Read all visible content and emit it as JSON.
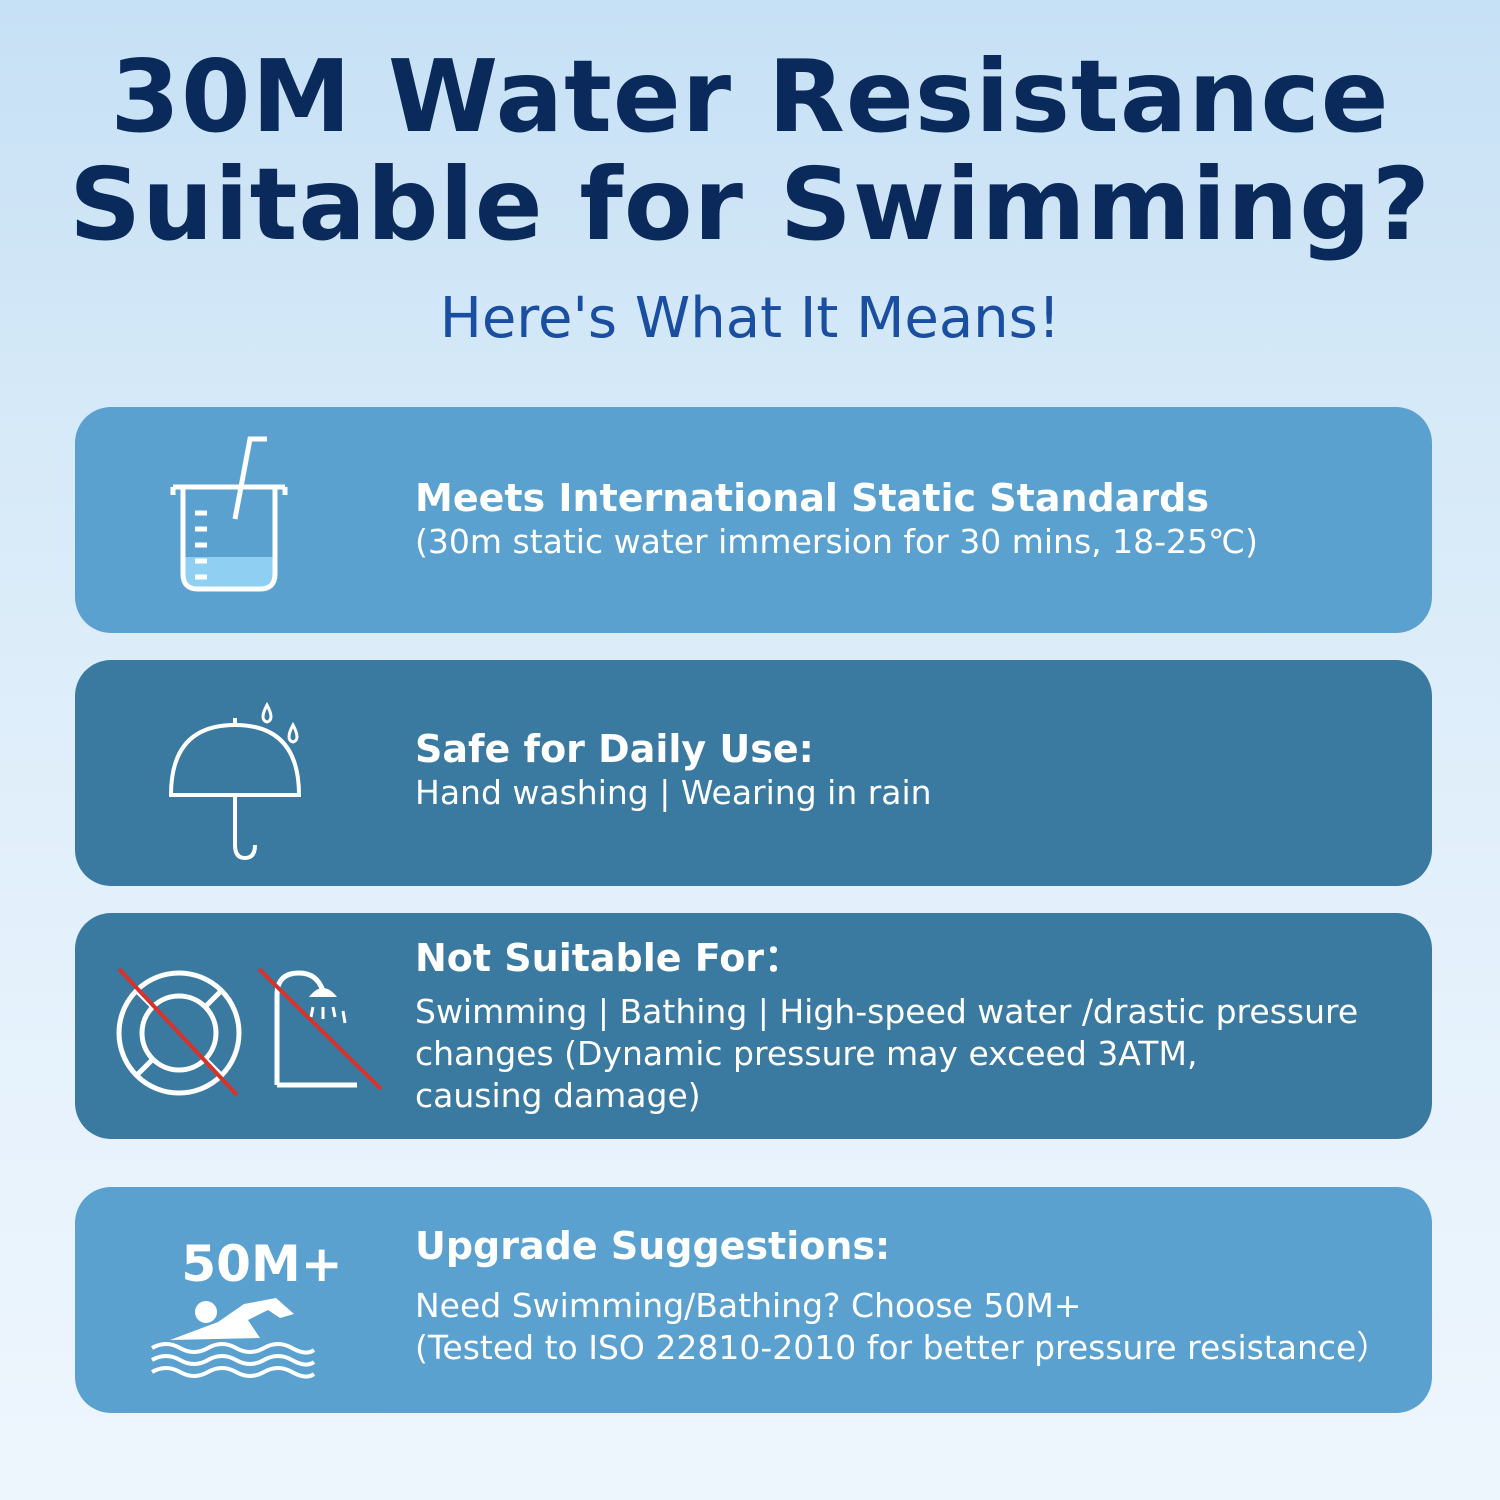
{
  "headline": {
    "line1": "30M Water Resistance",
    "line2": "Suitable for Swimming?"
  },
  "subtitle": "Here's What It Means!",
  "cards": [
    {
      "icon": "beaker-icon",
      "title": "Meets International Static Standards",
      "body": "(30m static water immersion for 30 mins, 18-25℃)"
    },
    {
      "icon": "umbrella-icon",
      "title": "Safe for Daily Use:",
      "body": "Hand washing | Wearing in rain"
    },
    {
      "icons": [
        "no-lifebuoy-icon",
        "no-shower-icon"
      ],
      "title": "Not Suitable For：",
      "body_lines": [
        "Swimming | Bathing | High-speed water /drastic pressure",
        "changes (Dynamic pressure may exceed 3ATM,",
        "causing damage)"
      ]
    },
    {
      "badge": "50M+",
      "icon": "swimmer-icon",
      "title": "Upgrade Suggestions:",
      "body_lines": [
        "Need Swimming/Bathing? Choose 50M+",
        "(Tested to ISO 22810-2010 for better pressure resistance）"
      ]
    }
  ],
  "colors": {
    "headline": "#0a2a5c",
    "subtitle": "#1a4ea0",
    "card_light": "#5aa1d0",
    "card_dark": "#3a7aa0",
    "prohibit_red": "#d8332a",
    "water_fill": "#8fd0f2"
  }
}
